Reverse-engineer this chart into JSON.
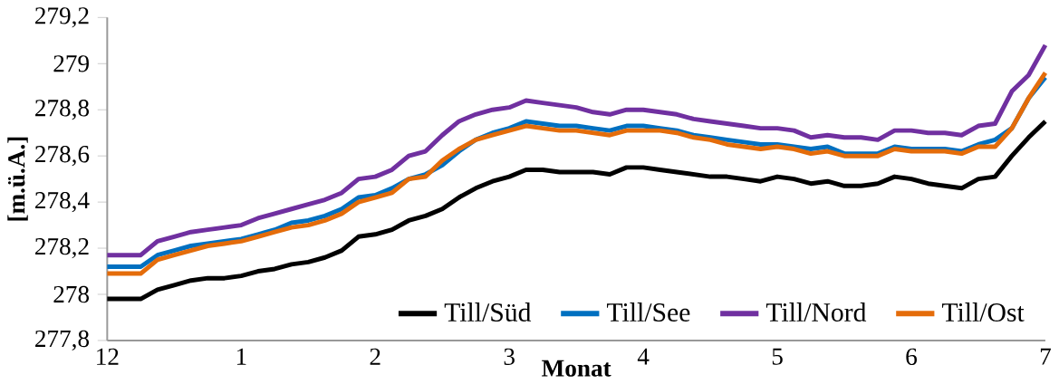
{
  "chart_data": {
    "type": "line",
    "xlabel": "Monat",
    "ylabel": "[m.ü.A.]",
    "ylim": [
      277.8,
      279.2
    ],
    "yticks": [
      {
        "value": 277.8,
        "label": "277,8"
      },
      {
        "value": 278,
        "label": "278"
      },
      {
        "value": 278.2,
        "label": "278,2"
      },
      {
        "value": 278.4,
        "label": "278,4"
      },
      {
        "value": 278.6,
        "label": "278,6"
      },
      {
        "value": 278.8,
        "label": "278,8"
      },
      {
        "value": 279,
        "label": "279"
      },
      {
        "value": 279.2,
        "label": "279,2"
      }
    ],
    "categories": [
      "12",
      null,
      null,
      null,
      null,
      null,
      null,
      null,
      "1",
      null,
      null,
      null,
      null,
      null,
      null,
      null,
      "2",
      null,
      null,
      null,
      null,
      null,
      null,
      null,
      "3",
      null,
      null,
      null,
      null,
      null,
      null,
      null,
      "4",
      null,
      null,
      null,
      null,
      null,
      null,
      null,
      "5",
      null,
      null,
      null,
      null,
      null,
      null,
      null,
      "6",
      null,
      null,
      null,
      null,
      null,
      null,
      null,
      "7"
    ],
    "legend": "bottom right",
    "marker": "none",
    "line_style": "solid",
    "grid": false,
    "series": [
      {
        "name": "Till/Süd",
        "color": "#000000",
        "values": [
          277.98,
          277.98,
          277.98,
          278.02,
          278.04,
          278.06,
          278.07,
          278.07,
          278.08,
          278.1,
          278.11,
          278.13,
          278.14,
          278.16,
          278.19,
          278.25,
          278.26,
          278.28,
          278.32,
          278.34,
          278.37,
          278.42,
          278.46,
          278.49,
          278.51,
          278.54,
          278.54,
          278.53,
          278.53,
          278.53,
          278.52,
          278.55,
          278.55,
          278.54,
          278.53,
          278.52,
          278.51,
          278.51,
          278.5,
          278.49,
          278.51,
          278.5,
          278.48,
          278.49,
          278.47,
          278.47,
          278.48,
          278.51,
          278.5,
          278.48,
          278.47,
          278.46,
          278.5,
          278.51,
          278.6,
          278.68,
          278.75
        ]
      },
      {
        "name": "Till/See",
        "color": "#0070c0",
        "values": [
          278.12,
          278.12,
          278.12,
          278.17,
          278.19,
          278.21,
          278.22,
          278.23,
          278.24,
          278.26,
          278.28,
          278.31,
          278.32,
          278.34,
          278.37,
          278.42,
          278.43,
          278.46,
          278.5,
          278.52,
          278.56,
          278.62,
          278.67,
          278.7,
          278.72,
          278.75,
          278.74,
          278.73,
          278.73,
          278.72,
          278.71,
          278.73,
          278.73,
          278.72,
          278.71,
          278.69,
          278.68,
          278.67,
          278.66,
          278.65,
          278.65,
          278.64,
          278.63,
          278.64,
          278.61,
          278.61,
          278.61,
          278.64,
          278.63,
          278.63,
          278.63,
          278.62,
          278.65,
          278.67,
          278.72,
          278.85,
          278.94
        ]
      },
      {
        "name": "Till/Nord",
        "color": "#7030a0",
        "values": [
          278.17,
          278.17,
          278.17,
          278.23,
          278.25,
          278.27,
          278.28,
          278.29,
          278.3,
          278.33,
          278.35,
          278.37,
          278.39,
          278.41,
          278.44,
          278.5,
          278.51,
          278.54,
          278.6,
          278.62,
          278.69,
          278.75,
          278.78,
          278.8,
          278.81,
          278.84,
          278.83,
          278.82,
          278.81,
          278.79,
          278.78,
          278.8,
          278.8,
          278.79,
          278.78,
          278.76,
          278.75,
          278.74,
          278.73,
          278.72,
          278.72,
          278.71,
          278.68,
          278.69,
          278.68,
          278.68,
          278.67,
          278.71,
          278.71,
          278.7,
          278.7,
          278.69,
          278.73,
          278.74,
          278.88,
          278.95,
          279.08
        ]
      },
      {
        "name": "Till/Ost",
        "color": "#e46c0a",
        "values": [
          278.09,
          278.09,
          278.09,
          278.15,
          278.17,
          278.19,
          278.21,
          278.22,
          278.23,
          278.25,
          278.27,
          278.29,
          278.3,
          278.32,
          278.35,
          278.4,
          278.42,
          278.44,
          278.5,
          278.51,
          278.58,
          278.63,
          278.67,
          278.69,
          278.71,
          278.73,
          278.72,
          278.71,
          278.71,
          278.7,
          278.69,
          278.71,
          278.71,
          278.71,
          278.7,
          278.68,
          278.67,
          278.65,
          278.64,
          278.63,
          278.64,
          278.63,
          278.61,
          278.62,
          278.6,
          278.6,
          278.6,
          278.63,
          278.62,
          278.62,
          278.62,
          278.61,
          278.64,
          278.64,
          278.72,
          278.85,
          278.96
        ]
      }
    ]
  }
}
